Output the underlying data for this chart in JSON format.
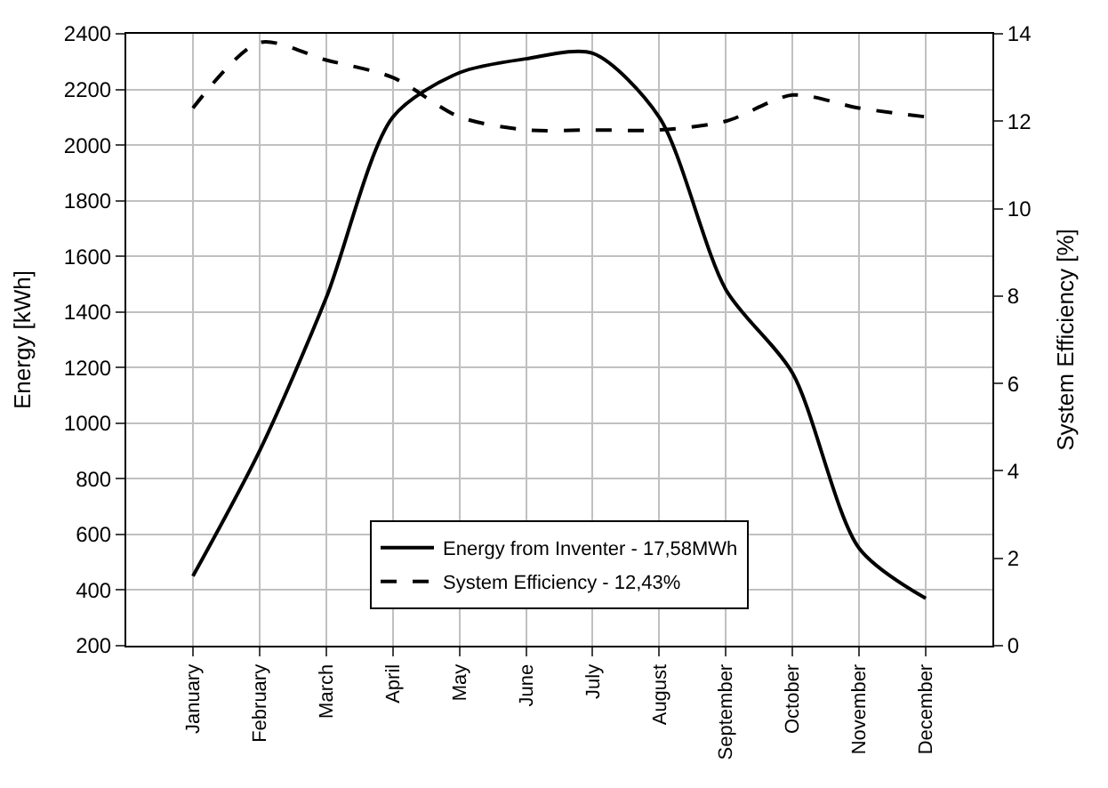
{
  "chart_data": {
    "type": "line",
    "ylabel": "Energy [kWh]",
    "y2label": "System Efficiency [%]",
    "categories": [
      "January",
      "February",
      "March",
      "April",
      "May",
      "June",
      "July",
      "August",
      "September",
      "October",
      "November",
      "December"
    ],
    "series": [
      {
        "name": "Energy from Inventer - 17,58MWh",
        "color": "#000000",
        "line_style": "solid",
        "values": [
          450,
          900,
          1450,
          2100,
          2260,
          2310,
          2330,
          2100,
          1480,
          1180,
          550,
          370
        ]
      },
      {
        "name": "System Efficiency - 12,43%",
        "color": "#000000",
        "line_style": "dashed",
        "axis": "y2",
        "values": [
          12.3,
          13.8,
          13.4,
          13.0,
          12.1,
          11.8,
          11.8,
          11.8,
          12.0,
          12.6,
          12.3,
          12.1
        ]
      }
    ],
    "ylim": [
      200,
      2400
    ],
    "yticks": [
      200,
      400,
      600,
      800,
      1000,
      1200,
      1400,
      1600,
      1800,
      2000,
      2200,
      2400
    ],
    "y2lim": [
      0,
      14
    ],
    "y2ticks": [
      0,
      2,
      4,
      6,
      8,
      10,
      12,
      14
    ],
    "grid": true,
    "legend": "bottom",
    "marker": "none"
  }
}
